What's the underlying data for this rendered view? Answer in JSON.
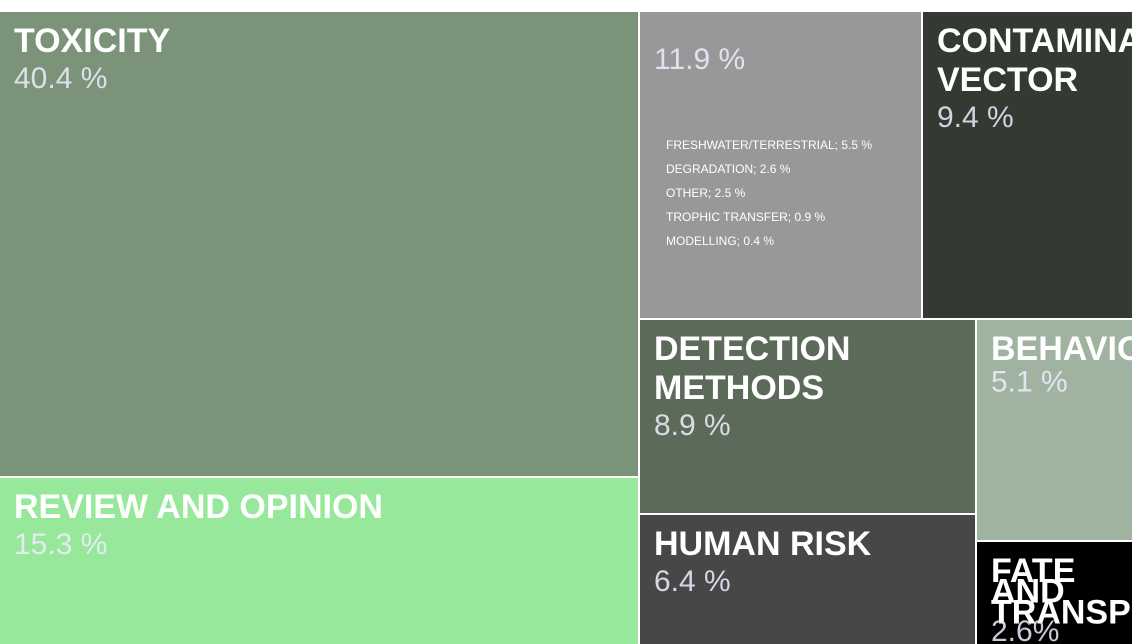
{
  "chart_data": {
    "type": "treemap",
    "categories": [
      "TOXICITY",
      "REVIEW AND OPINION",
      null,
      "CONTAMINANT VECTOR",
      "DETECTION METHODS",
      "HUMAN RISK",
      "BEHAVIOUR",
      "FATE AND TRANSPORT"
    ],
    "values": [
      40.4,
      15.3,
      11.9,
      9.4,
      8.9,
      6.4,
      5.1,
      2.6
    ],
    "value_labels": [
      "40.4 %",
      "15.3 %",
      "11.9 %",
      "9.4 %",
      "8.9 %",
      "6.4 %",
      "5.1 %",
      "2.6%"
    ],
    "colors": [
      "#7a9379",
      "#98e89b",
      "#999899",
      "#323a31",
      "#5b6a59",
      "#474747",
      "#9fb3a0",
      "#000000"
    ],
    "breakdown": [
      {
        "label": "FRESHWATER/TERRESTRIAL; 5.5 %",
        "value": 5.5
      },
      {
        "label": "DEGRADATION; 2.6 %",
        "value": 2.6
      },
      {
        "label": "OTHER; 2.5 %",
        "value": 2.5
      },
      {
        "label": "TROPHIC TRANSFER; 0.9 %",
        "value": 0.9
      },
      {
        "label": "MODELLING; 0.4 %",
        "value": 0.4
      }
    ]
  }
}
